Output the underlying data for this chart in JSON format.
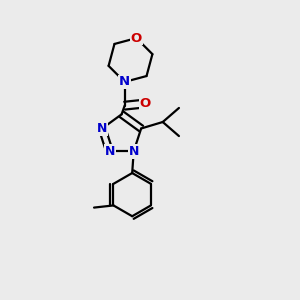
{
  "bg_color": "#ebebeb",
  "bond_color": "#000000",
  "nitrogen_color": "#0000cc",
  "oxygen_color": "#cc0000",
  "line_width": 1.6,
  "font_size_atom": 9.5,
  "fig_size": [
    3.0,
    3.0
  ],
  "dpi": 100,
  "xlim": [
    0,
    1
  ],
  "ylim": [
    0,
    1
  ]
}
